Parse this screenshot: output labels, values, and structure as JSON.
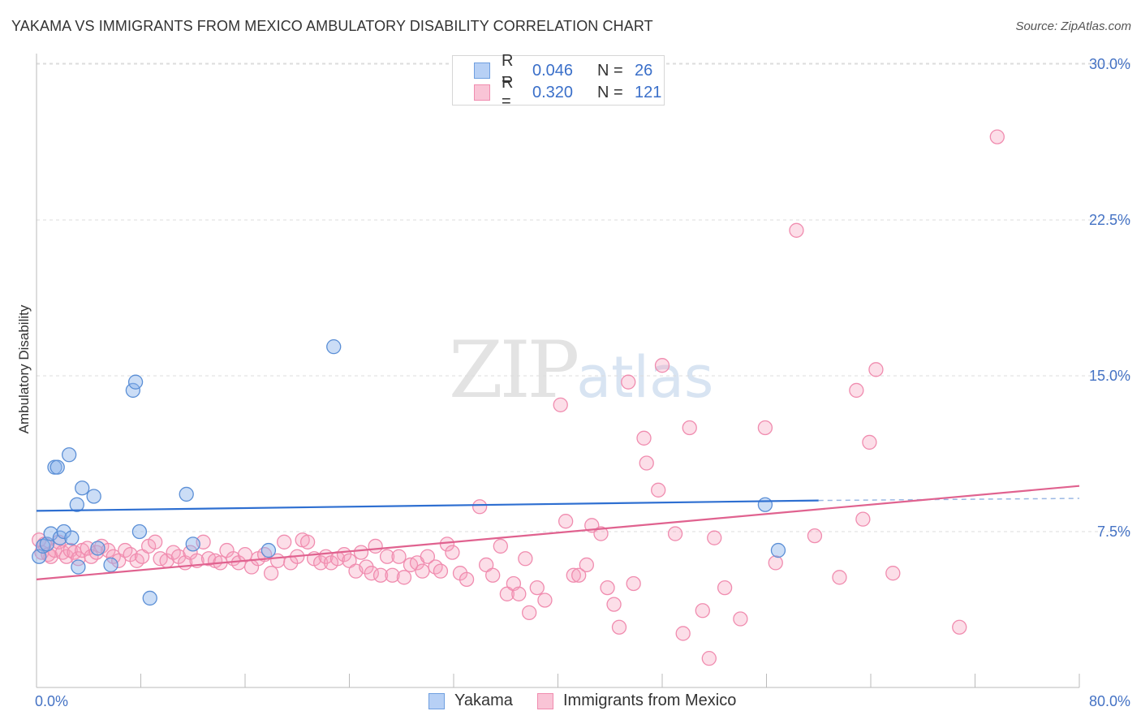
{
  "header": {
    "title": "YAKAMA VS IMMIGRANTS FROM MEXICO AMBULATORY DISABILITY CORRELATION CHART",
    "source": "Source: ZipAtlas.com"
  },
  "watermark": {
    "main": "ZIP",
    "suffix": "atlas"
  },
  "legend": {
    "rows": [
      {
        "r_label": "R =",
        "r_value": "0.046",
        "n_label": "N =",
        "n_value": "26"
      },
      {
        "r_label": "R =",
        "r_value": "0.320",
        "n_label": "N =",
        "n_value": "121"
      }
    ]
  },
  "bottom_legend": {
    "items": [
      "Yakama",
      "Immigrants from Mexico"
    ]
  },
  "chart_data": {
    "type": "scatter",
    "title": "YAKAMA VS IMMIGRANTS FROM MEXICO AMBULATORY DISABILITY CORRELATION CHART",
    "xlabel": "",
    "ylabel": "Ambulatory Disability",
    "xlim": [
      0,
      80
    ],
    "ylim": [
      0,
      31
    ],
    "x_tick_labels": [
      "0.0%",
      "80.0%"
    ],
    "y_ticks": [
      7.5,
      15.0,
      22.5,
      30.0
    ],
    "y_tick_labels": [
      "7.5%",
      "15.0%",
      "22.5%",
      "30.0%"
    ],
    "grid": true,
    "legend_position": "top-center",
    "colors": {
      "yakama": "#6f9fe0",
      "mexico": "#f08caf",
      "yakama_line": "#2e6fd1",
      "mexico_line": "#e0628f"
    },
    "series": [
      {
        "name": "Yakama",
        "color": "#6f9fe0",
        "trend": {
          "x": [
            0,
            60
          ],
          "y": [
            8.5,
            9.0
          ],
          "dashed_to_x": 80,
          "dashed_y": 9.1
        },
        "points": [
          [
            0.2,
            6.3
          ],
          [
            0.5,
            6.8
          ],
          [
            0.8,
            6.9
          ],
          [
            1.1,
            7.4
          ],
          [
            1.4,
            10.6
          ],
          [
            1.6,
            10.6
          ],
          [
            1.8,
            7.2
          ],
          [
            2.1,
            7.5
          ],
          [
            2.5,
            11.2
          ],
          [
            2.7,
            7.2
          ],
          [
            3.1,
            8.8
          ],
          [
            3.2,
            5.8
          ],
          [
            3.5,
            9.6
          ],
          [
            4.4,
            9.2
          ],
          [
            4.7,
            6.7
          ],
          [
            5.7,
            5.9
          ],
          [
            7.4,
            14.3
          ],
          [
            7.6,
            14.7
          ],
          [
            7.9,
            7.5
          ],
          [
            8.7,
            4.3
          ],
          [
            11.5,
            9.3
          ],
          [
            12.0,
            6.9
          ],
          [
            17.8,
            6.6
          ],
          [
            22.8,
            16.4
          ],
          [
            55.9,
            8.8
          ],
          [
            56.9,
            6.6
          ]
        ]
      },
      {
        "name": "Immigrants from Mexico",
        "color": "#f08caf",
        "trend": {
          "x": [
            0,
            80
          ],
          "y": [
            5.2,
            9.7
          ]
        },
        "points": [
          [
            0.2,
            7.1
          ],
          [
            0.4,
            6.5
          ],
          [
            0.6,
            6.9
          ],
          [
            0.9,
            6.4
          ],
          [
            1.1,
            6.3
          ],
          [
            1.4,
            6.6
          ],
          [
            1.7,
            7.0
          ],
          [
            2.0,
            6.5
          ],
          [
            2.3,
            6.3
          ],
          [
            2.6,
            6.6
          ],
          [
            2.9,
            6.5
          ],
          [
            3.2,
            6.2
          ],
          [
            3.5,
            6.6
          ],
          [
            3.9,
            6.7
          ],
          [
            4.2,
            6.3
          ],
          [
            4.6,
            6.5
          ],
          [
            5.0,
            6.8
          ],
          [
            5.5,
            6.6
          ],
          [
            5.9,
            6.3
          ],
          [
            6.3,
            6.1
          ],
          [
            6.8,
            6.6
          ],
          [
            7.2,
            6.4
          ],
          [
            7.7,
            6.1
          ],
          [
            8.1,
            6.3
          ],
          [
            8.6,
            6.8
          ],
          [
            9.1,
            7.0
          ],
          [
            9.5,
            6.2
          ],
          [
            10.0,
            6.1
          ],
          [
            10.5,
            6.5
          ],
          [
            10.9,
            6.3
          ],
          [
            11.4,
            6.0
          ],
          [
            11.8,
            6.5
          ],
          [
            12.3,
            6.1
          ],
          [
            12.8,
            7.0
          ],
          [
            13.2,
            6.2
          ],
          [
            13.7,
            6.1
          ],
          [
            14.1,
            6.0
          ],
          [
            14.6,
            6.6
          ],
          [
            15.1,
            6.2
          ],
          [
            15.5,
            6.0
          ],
          [
            16.0,
            6.4
          ],
          [
            16.5,
            5.8
          ],
          [
            17.0,
            6.2
          ],
          [
            17.5,
            6.4
          ],
          [
            18.0,
            5.5
          ],
          [
            18.5,
            6.1
          ],
          [
            19.0,
            7.0
          ],
          [
            19.5,
            6.0
          ],
          [
            20.0,
            6.3
          ],
          [
            20.4,
            7.1
          ],
          [
            20.8,
            7.0
          ],
          [
            21.3,
            6.2
          ],
          [
            21.8,
            6.0
          ],
          [
            22.2,
            6.3
          ],
          [
            22.6,
            6.0
          ],
          [
            23.1,
            6.2
          ],
          [
            23.6,
            6.4
          ],
          [
            24.0,
            6.1
          ],
          [
            24.5,
            5.6
          ],
          [
            24.9,
            6.5
          ],
          [
            25.3,
            5.8
          ],
          [
            25.7,
            5.5
          ],
          [
            26.0,
            6.8
          ],
          [
            26.4,
            5.4
          ],
          [
            26.9,
            6.3
          ],
          [
            27.3,
            5.4
          ],
          [
            27.8,
            6.3
          ],
          [
            28.2,
            5.3
          ],
          [
            28.7,
            5.9
          ],
          [
            29.2,
            6.0
          ],
          [
            29.6,
            5.6
          ],
          [
            30.0,
            6.3
          ],
          [
            30.6,
            5.8
          ],
          [
            31.0,
            5.6
          ],
          [
            31.5,
            6.9
          ],
          [
            31.9,
            6.5
          ],
          [
            32.5,
            5.5
          ],
          [
            33.0,
            5.2
          ],
          [
            34.0,
            8.7
          ],
          [
            34.5,
            5.9
          ],
          [
            35.0,
            5.4
          ],
          [
            35.6,
            6.8
          ],
          [
            36.1,
            4.5
          ],
          [
            36.6,
            5.0
          ],
          [
            37.0,
            4.5
          ],
          [
            37.5,
            6.2
          ],
          [
            37.8,
            3.6
          ],
          [
            38.4,
            4.8
          ],
          [
            39.0,
            4.2
          ],
          [
            40.2,
            13.6
          ],
          [
            40.6,
            8.0
          ],
          [
            41.2,
            5.4
          ],
          [
            41.6,
            5.4
          ],
          [
            42.2,
            5.9
          ],
          [
            42.6,
            7.8
          ],
          [
            43.3,
            7.4
          ],
          [
            43.8,
            4.8
          ],
          [
            44.3,
            4.0
          ],
          [
            44.7,
            2.9
          ],
          [
            45.4,
            14.7
          ],
          [
            45.8,
            5.0
          ],
          [
            46.6,
            12.0
          ],
          [
            46.8,
            10.8
          ],
          [
            47.7,
            9.5
          ],
          [
            48.0,
            15.5
          ],
          [
            49.0,
            7.4
          ],
          [
            49.6,
            2.6
          ],
          [
            50.1,
            12.5
          ],
          [
            51.1,
            3.7
          ],
          [
            51.6,
            1.4
          ],
          [
            52.0,
            7.2
          ],
          [
            52.8,
            4.8
          ],
          [
            54.0,
            3.3
          ],
          [
            55.9,
            12.5
          ],
          [
            56.7,
            6.0
          ],
          [
            58.3,
            22.0
          ],
          [
            59.7,
            7.3
          ],
          [
            61.6,
            5.3
          ],
          [
            62.9,
            14.3
          ],
          [
            63.4,
            8.1
          ],
          [
            63.9,
            11.8
          ],
          [
            64.4,
            15.3
          ],
          [
            65.7,
            5.5
          ],
          [
            70.8,
            2.9
          ],
          [
            73.7,
            26.5
          ]
        ]
      }
    ]
  }
}
